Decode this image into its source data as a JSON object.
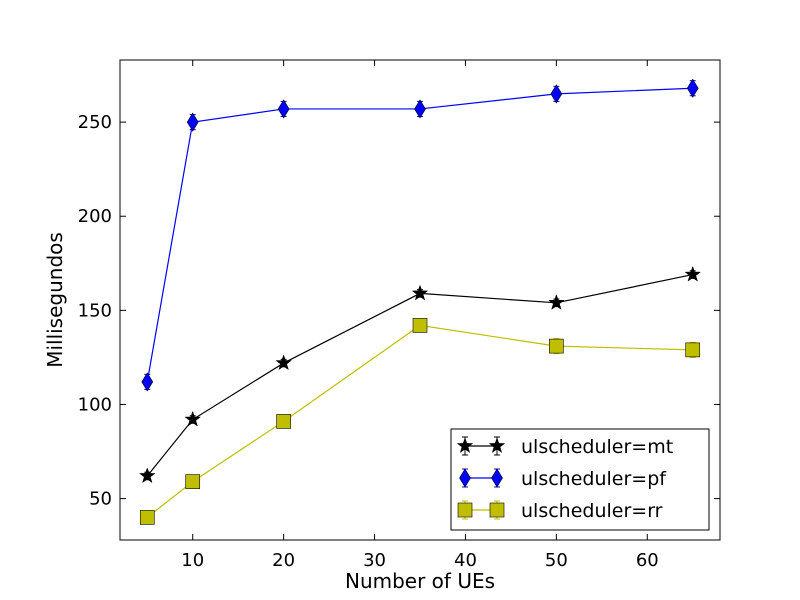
{
  "chart_data": {
    "type": "line",
    "xlabel": "Number of UEs",
    "ylabel": "Millisegundos",
    "xlim": [
      2,
      68
    ],
    "ylim": [
      28,
      283
    ],
    "xticks": [
      10,
      20,
      30,
      40,
      50,
      60
    ],
    "yticks": [
      50,
      100,
      150,
      200,
      250
    ],
    "x": [
      5,
      10,
      20,
      35,
      50,
      65
    ],
    "legend_position": "lower-right",
    "series": [
      {
        "name": "ulscheduler=mt",
        "values": [
          62,
          92,
          122,
          159,
          154,
          169
        ],
        "err": [
          2,
          2,
          2,
          2,
          2,
          2
        ],
        "color": "#000000",
        "marker": "star"
      },
      {
        "name": "ulscheduler=pf",
        "values": [
          112,
          250,
          257,
          257,
          265,
          268
        ],
        "err": [
          4,
          4,
          4,
          4,
          4,
          4
        ],
        "color": "#0000ff",
        "marker": "diamond"
      },
      {
        "name": "ulscheduler=rr",
        "values": [
          40,
          59,
          91,
          142,
          131,
          129
        ],
        "err": [
          2,
          2,
          2,
          3,
          4,
          4
        ],
        "color": "#bfbf00",
        "marker": "square"
      }
    ]
  }
}
